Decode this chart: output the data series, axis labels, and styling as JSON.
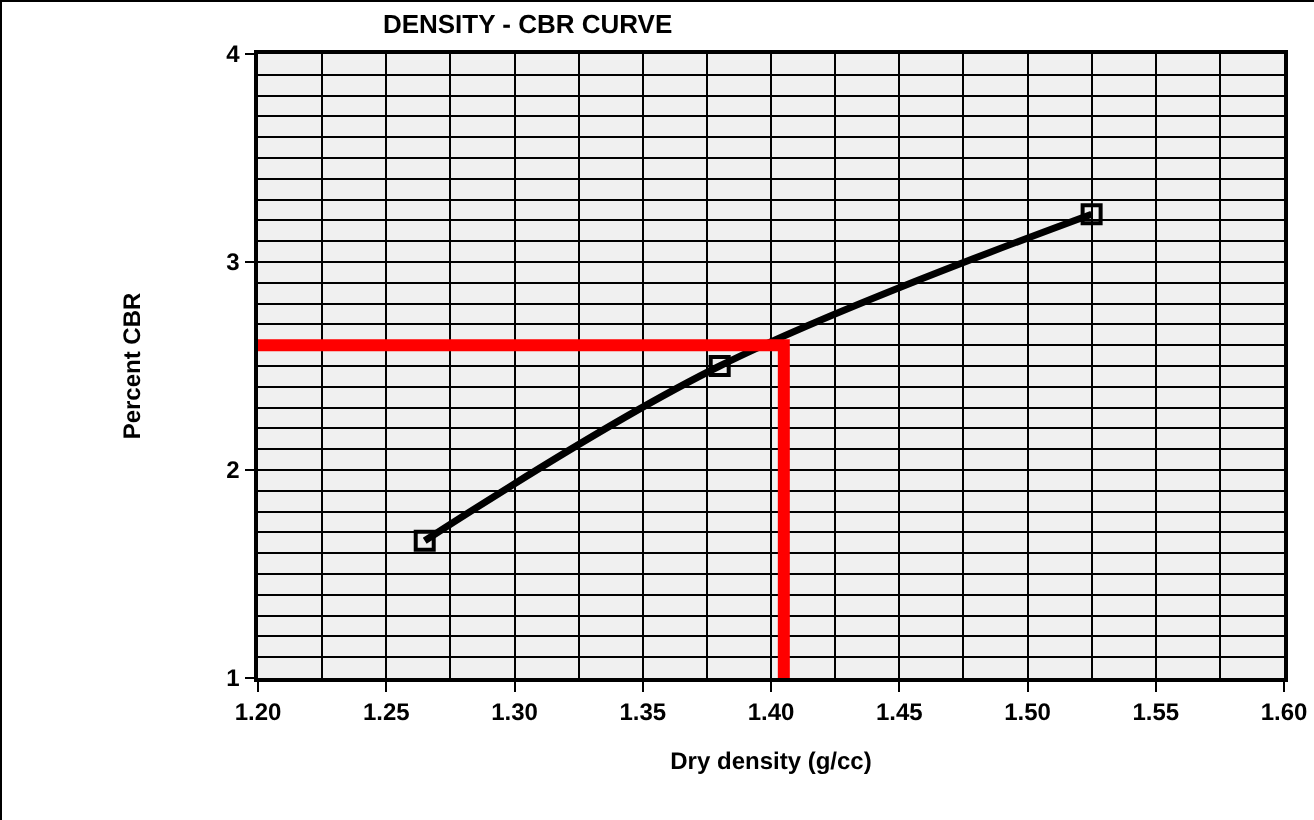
{
  "chart_data": {
    "type": "line",
    "title": "DENSITY - CBR CURVE",
    "xlabel": "Dry density (g/cc)",
    "ylabel": "Percent CBR",
    "series": [
      {
        "color": "#000000",
        "x": [
          1.265,
          1.38,
          1.525
        ],
        "values": [
          1.66,
          2.5,
          3.23
        ],
        "marker": "square"
      },
      {
        "type": "step",
        "color": "#ff0000",
        "x": [
          1.2,
          1.405
        ],
        "values": [
          2.6,
          1
        ],
        "marker": "none"
      }
    ],
    "xlim": [
      1.2,
      1.6
    ],
    "xticks": [
      {
        "value": 1.2,
        "label": "1.20"
      },
      {
        "value": 1.25,
        "label": "1.25"
      },
      {
        "value": 1.3,
        "label": "1.30"
      },
      {
        "value": 1.35,
        "label": "1.35"
      },
      {
        "value": 1.4,
        "label": "1.40"
      },
      {
        "value": 1.45,
        "label": "1.45"
      },
      {
        "value": 1.5,
        "label": "1.50"
      },
      {
        "value": 1.55,
        "label": "1.55"
      },
      {
        "value": 1.6,
        "label": "1.60"
      }
    ],
    "ylim": [
      1,
      4
    ],
    "yticks": [
      1,
      2,
      3,
      4
    ],
    "grid": true
  }
}
